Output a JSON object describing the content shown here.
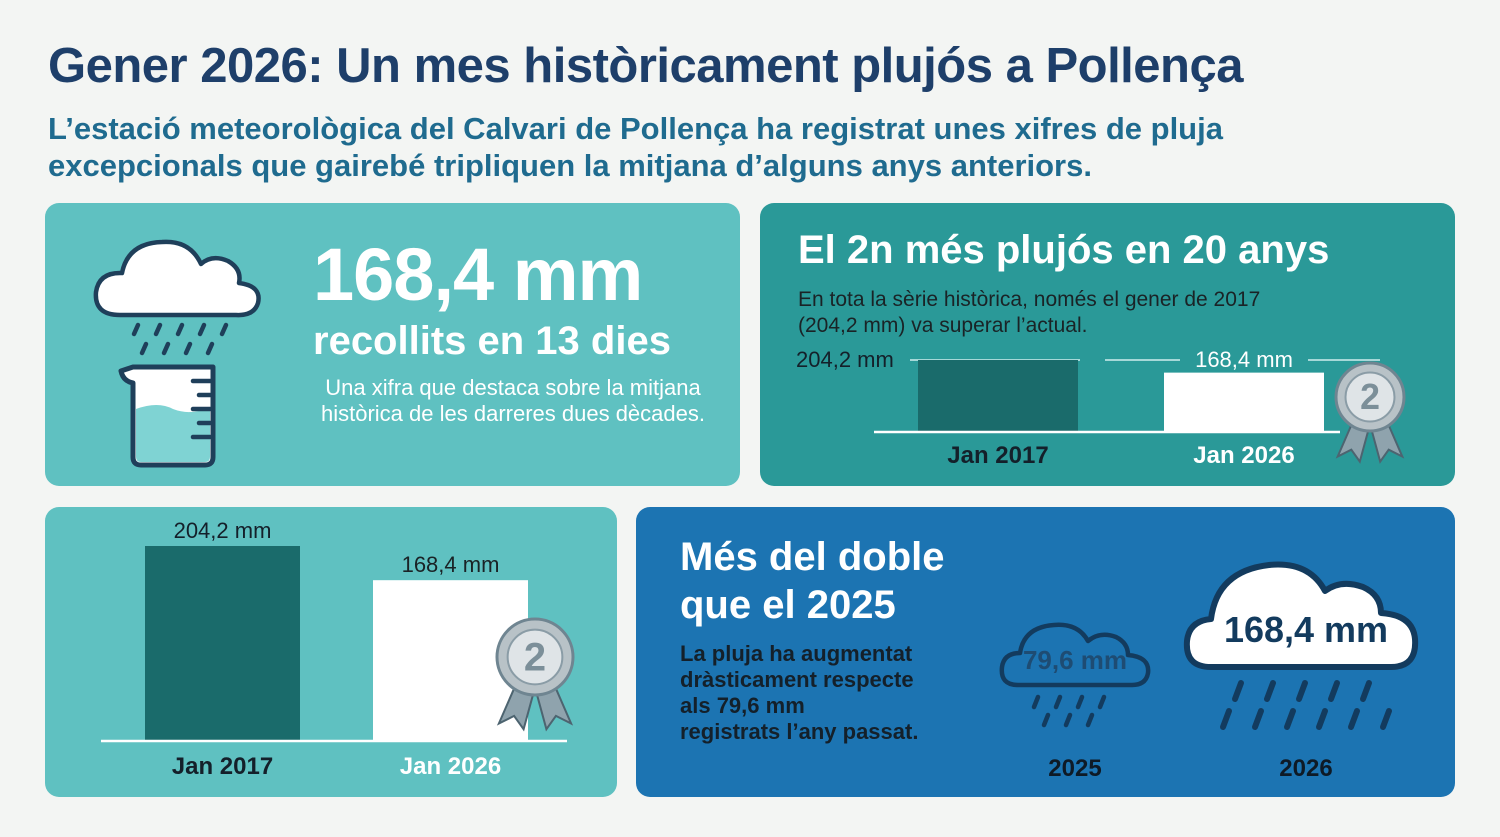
{
  "header": {
    "title": "Gener 2026: Un mes històricament plujós a Pollença",
    "subtitle_line1": "L’estació meteorològica del Calvari de Pollença ha registrat unes xifres de pluja",
    "subtitle_line2": "excepcionals que gairebé tripliquen la mitjana d’alguns anys anteriors."
  },
  "card_rainfall": {
    "value": "168,4 mm",
    "detail": "recollits en 13 dies",
    "desc_line1": "Una xifra que destaca sobre la mitjana",
    "desc_line2": "històrica de les darreres dues dècades.",
    "icons": [
      "rain-cloud-icon",
      "measuring-beaker-icon"
    ]
  },
  "card_ranking": {
    "heading": "El 2n més plujós en 20 anys",
    "desc_line1": "En tota la sèrie històrica, només el gener de 2017",
    "desc_line2": "(204,2 mm) va superar l’actual.",
    "medal": "2",
    "bars": [
      {
        "label": "Jan 2017",
        "value_label": "204,2 mm",
        "value": 204.2
      },
      {
        "label": "Jan 2026",
        "value_label": "168,4 mm",
        "value": 168.4
      }
    ]
  },
  "card_compare": {
    "medal": "2",
    "bars": [
      {
        "label": "Jan 2017",
        "value_label": "204,2 mm",
        "value": 204.2
      },
      {
        "label": "Jan 2026",
        "value_label": "168,4 mm",
        "value": 168.4
      }
    ]
  },
  "card_double": {
    "heading_line1": "Més del doble",
    "heading_line2": "que el 2025",
    "desc_line1": "La pluja ha augmentat",
    "desc_line2": "dràsticament respecte",
    "desc_line3": "als 79,6 mm",
    "desc_line4": "registrats l’any passat.",
    "clouds": [
      {
        "value_label": "79,6 mm",
        "year": "2025"
      },
      {
        "value_label": "168,4 mm",
        "year": "2026"
      }
    ]
  },
  "colors": {
    "title": "#1e3f6a",
    "subtitle": "#1f6b8f",
    "teal_light": "#5fc1c1",
    "teal_mid": "#2a9998",
    "bar_dark": "#1a6b6b",
    "blue": "#1c74b2",
    "silver": "#c9cfd2"
  }
}
